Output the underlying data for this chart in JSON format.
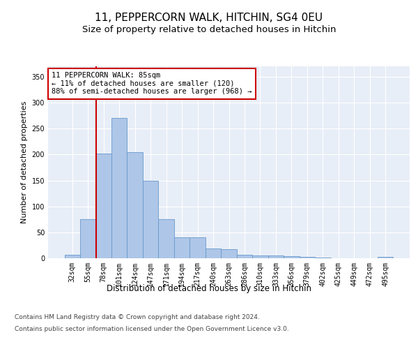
{
  "title": "11, PEPPERCORN WALK, HITCHIN, SG4 0EU",
  "subtitle": "Size of property relative to detached houses in Hitchin",
  "xlabel": "Distribution of detached houses by size in Hitchin",
  "ylabel": "Number of detached properties",
  "categories": [
    "32sqm",
    "55sqm",
    "78sqm",
    "101sqm",
    "124sqm",
    "147sqm",
    "171sqm",
    "194sqm",
    "217sqm",
    "240sqm",
    "263sqm",
    "286sqm",
    "310sqm",
    "333sqm",
    "356sqm",
    "379sqm",
    "402sqm",
    "425sqm",
    "449sqm",
    "472sqm",
    "495sqm"
  ],
  "values": [
    7,
    75,
    202,
    271,
    205,
    149,
    75,
    40,
    40,
    19,
    18,
    7,
    6,
    5,
    4,
    3,
    2,
    0,
    0,
    0,
    3
  ],
  "bar_color": "#aec6e8",
  "bar_edge_color": "#6699cc",
  "vline_color": "#cc0000",
  "vline_pos": 1.5,
  "annotation_text": "11 PEPPERCORN WALK: 85sqm\n← 11% of detached houses are smaller (120)\n88% of semi-detached houses are larger (968) →",
  "annotation_box_color": "#ffffff",
  "annotation_box_edge_color": "#cc0000",
  "ylim": [
    0,
    370
  ],
  "yticks": [
    0,
    50,
    100,
    150,
    200,
    250,
    300,
    350
  ],
  "bg_color": "#e8eef7",
  "fig_bg_color": "#ffffff",
  "footer_line1": "Contains HM Land Registry data © Crown copyright and database right 2024.",
  "footer_line2": "Contains public sector information licensed under the Open Government Licence v3.0.",
  "title_fontsize": 11,
  "subtitle_fontsize": 9.5,
  "xlabel_fontsize": 8.5,
  "ylabel_fontsize": 8,
  "tick_fontsize": 7,
  "annotation_fontsize": 7.5,
  "footer_fontsize": 6.5
}
